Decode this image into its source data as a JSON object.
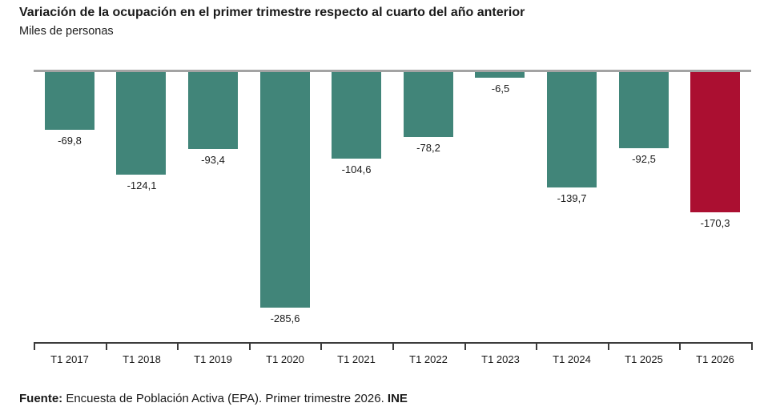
{
  "header": {
    "title": "Variación de la ocupación en el primer trimestre respecto al cuarto del año anterior",
    "subtitle": "Miles de personas"
  },
  "footer": {
    "source_label": "Fuente:",
    "source_text": " Encuesta de Población Activa (EPA). Primer trimestre 2026. ",
    "source_publisher": "INE"
  },
  "chart_data": {
    "type": "bar",
    "title": "Variación de la ocupación en el primer trimestre respecto al cuarto del año anterior",
    "ylabel": "Miles de personas",
    "categories": [
      "T1 2017",
      "T1 2018",
      "T1 2019",
      "T1 2020",
      "T1 2021",
      "T1 2022",
      "T1 2023",
      "T1 2024",
      "T1 2025",
      "T1 2026"
    ],
    "values": [
      -69.8,
      -124.1,
      -93.4,
      -285.6,
      -104.6,
      -78.2,
      -6.5,
      -139.7,
      -92.5,
      -170.3
    ],
    "value_labels": [
      "-69,8",
      "-124,1",
      "-93,4",
      "-285,6",
      "-104,6",
      "-78,2",
      "-6,5",
      "-139,7",
      "-92,5",
      "-170,3"
    ],
    "highlight_index": 9,
    "bar_color": "#418579",
    "highlight_color": "#ab0f31",
    "ylim": [
      -300,
      0
    ],
    "grid": false,
    "baseline_position": "top",
    "legend": "none"
  }
}
